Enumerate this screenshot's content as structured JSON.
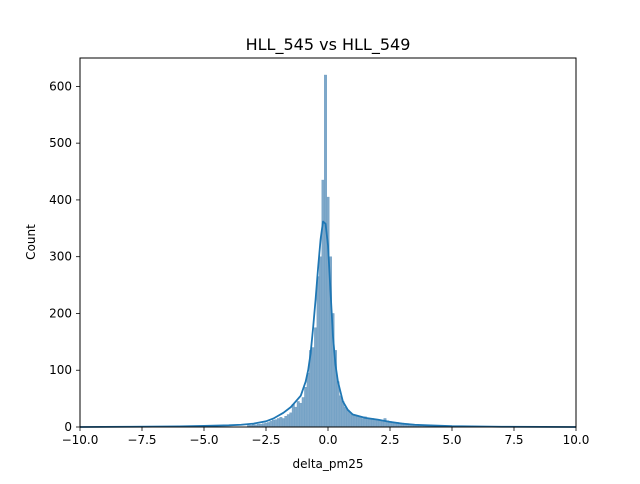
{
  "chart_data": {
    "type": "bar",
    "title": "HLL_545 vs HLL_549",
    "xlabel": "delta_pm25",
    "ylabel": "Count",
    "xlim": [
      -10,
      10
    ],
    "ylim": [
      0,
      650
    ],
    "xticks": [
      -10,
      -7.5,
      -5,
      -2.5,
      0,
      2.5,
      5,
      7.5,
      10
    ],
    "xtick_labels": [
      "−10.0",
      "−7.5",
      "−5.0",
      "−2.5",
      "0.0",
      "2.5",
      "5.0",
      "7.5",
      "10.0"
    ],
    "yticks": [
      0,
      100,
      200,
      300,
      400,
      500,
      600
    ],
    "ytick_labels": [
      "0",
      "100",
      "200",
      "300",
      "400",
      "500",
      "600"
    ],
    "grid": false,
    "bin_width": 0.1,
    "bins": [
      {
        "x": -3.2,
        "count": 3
      },
      {
        "x": -3.1,
        "count": 3
      },
      {
        "x": -3.0,
        "count": 4
      },
      {
        "x": -2.9,
        "count": 4
      },
      {
        "x": -2.8,
        "count": 5
      },
      {
        "x": -2.7,
        "count": 5
      },
      {
        "x": -2.6,
        "count": 6
      },
      {
        "x": -2.5,
        "count": 7
      },
      {
        "x": -2.4,
        "count": 8
      },
      {
        "x": -2.3,
        "count": 10
      },
      {
        "x": -2.2,
        "count": 12
      },
      {
        "x": -2.1,
        "count": 13
      },
      {
        "x": -2.0,
        "count": 15
      },
      {
        "x": -1.9,
        "count": 17
      },
      {
        "x": -1.8,
        "count": 15
      },
      {
        "x": -1.7,
        "count": 19
      },
      {
        "x": -1.6,
        "count": 22
      },
      {
        "x": -1.5,
        "count": 25
      },
      {
        "x": -1.4,
        "count": 40
      },
      {
        "x": -1.3,
        "count": 35
      },
      {
        "x": -1.2,
        "count": 45
      },
      {
        "x": -1.1,
        "count": 42
      },
      {
        "x": -1.0,
        "count": 52
      },
      {
        "x": -0.9,
        "count": 70
      },
      {
        "x": -0.8,
        "count": 95
      },
      {
        "x": -0.7,
        "count": 135
      },
      {
        "x": -0.6,
        "count": 140
      },
      {
        "x": -0.5,
        "count": 175
      },
      {
        "x": -0.4,
        "count": 265
      },
      {
        "x": -0.3,
        "count": 300
      },
      {
        "x": -0.2,
        "count": 435
      },
      {
        "x": -0.1,
        "count": 620
      },
      {
        "x": 0.0,
        "count": 405
      },
      {
        "x": 0.1,
        "count": 300
      },
      {
        "x": 0.2,
        "count": 200
      },
      {
        "x": 0.3,
        "count": 135
      },
      {
        "x": 0.4,
        "count": 80
      },
      {
        "x": 0.5,
        "count": 55
      },
      {
        "x": 0.6,
        "count": 45
      },
      {
        "x": 0.7,
        "count": 35
      },
      {
        "x": 0.8,
        "count": 30
      },
      {
        "x": 0.9,
        "count": 25
      },
      {
        "x": 1.0,
        "count": 22
      },
      {
        "x": 1.1,
        "count": 20
      },
      {
        "x": 1.2,
        "count": 18
      },
      {
        "x": 1.3,
        "count": 17
      },
      {
        "x": 1.4,
        "count": 15
      },
      {
        "x": 1.5,
        "count": 18
      },
      {
        "x": 1.6,
        "count": 15
      },
      {
        "x": 1.7,
        "count": 14
      },
      {
        "x": 1.8,
        "count": 15
      },
      {
        "x": 1.9,
        "count": 12
      },
      {
        "x": 2.0,
        "count": 13
      },
      {
        "x": 2.1,
        "count": 12
      },
      {
        "x": 2.2,
        "count": 10
      },
      {
        "x": 2.3,
        "count": 15
      },
      {
        "x": 2.4,
        "count": 11
      },
      {
        "x": 2.5,
        "count": 10
      },
      {
        "x": 2.6,
        "count": 9
      },
      {
        "x": 2.7,
        "count": 8
      },
      {
        "x": 2.8,
        "count": 8
      },
      {
        "x": 2.9,
        "count": 7
      },
      {
        "x": 3.0,
        "count": 7
      },
      {
        "x": 3.1,
        "count": 6
      },
      {
        "x": 3.2,
        "count": 6
      },
      {
        "x": 3.3,
        "count": 5
      },
      {
        "x": 3.4,
        "count": 5
      },
      {
        "x": 3.5,
        "count": 4
      },
      {
        "x": 3.6,
        "count": 4
      },
      {
        "x": 3.7,
        "count": 3
      },
      {
        "x": 3.8,
        "count": 3
      },
      {
        "x": 3.9,
        "count": 3
      },
      {
        "x": 4.0,
        "count": 2
      },
      {
        "x": 4.1,
        "count": 2
      },
      {
        "x": 4.2,
        "count": 2
      },
      {
        "x": 4.3,
        "count": 2
      }
    ],
    "kde": [
      {
        "x": -10,
        "y": 0
      },
      {
        "x": -8,
        "y": 0.5
      },
      {
        "x": -6,
        "y": 1
      },
      {
        "x": -5,
        "y": 2
      },
      {
        "x": -4,
        "y": 3
      },
      {
        "x": -3.5,
        "y": 4
      },
      {
        "x": -3,
        "y": 6
      },
      {
        "x": -2.5,
        "y": 10
      },
      {
        "x": -2.2,
        "y": 15
      },
      {
        "x": -2,
        "y": 20
      },
      {
        "x": -1.8,
        "y": 25
      },
      {
        "x": -1.5,
        "y": 35
      },
      {
        "x": -1.3,
        "y": 45
      },
      {
        "x": -1.1,
        "y": 55
      },
      {
        "x": -0.9,
        "y": 80
      },
      {
        "x": -0.8,
        "y": 100
      },
      {
        "x": -0.7,
        "y": 130
      },
      {
        "x": -0.6,
        "y": 175
      },
      {
        "x": -0.5,
        "y": 225
      },
      {
        "x": -0.4,
        "y": 280
      },
      {
        "x": -0.3,
        "y": 330
      },
      {
        "x": -0.2,
        "y": 362
      },
      {
        "x": -0.1,
        "y": 358
      },
      {
        "x": 0.0,
        "y": 320
      },
      {
        "x": 0.1,
        "y": 240
      },
      {
        "x": 0.2,
        "y": 160
      },
      {
        "x": 0.3,
        "y": 110
      },
      {
        "x": 0.4,
        "y": 80
      },
      {
        "x": 0.6,
        "y": 45
      },
      {
        "x": 0.8,
        "y": 30
      },
      {
        "x": 1.0,
        "y": 22
      },
      {
        "x": 1.5,
        "y": 16
      },
      {
        "x": 2.0,
        "y": 13
      },
      {
        "x": 2.5,
        "y": 9
      },
      {
        "x": 3.0,
        "y": 6
      },
      {
        "x": 3.5,
        "y": 4
      },
      {
        "x": 4.0,
        "y": 3
      },
      {
        "x": 5.0,
        "y": 1.5
      },
      {
        "x": 7.0,
        "y": 0.5
      },
      {
        "x": 10.0,
        "y": 0
      }
    ],
    "colors": {
      "bar_fill": "#7fa8c9",
      "bar_edge": "#6a9cc3",
      "kde_line": "#1f77b4",
      "axes": "#000000"
    }
  }
}
